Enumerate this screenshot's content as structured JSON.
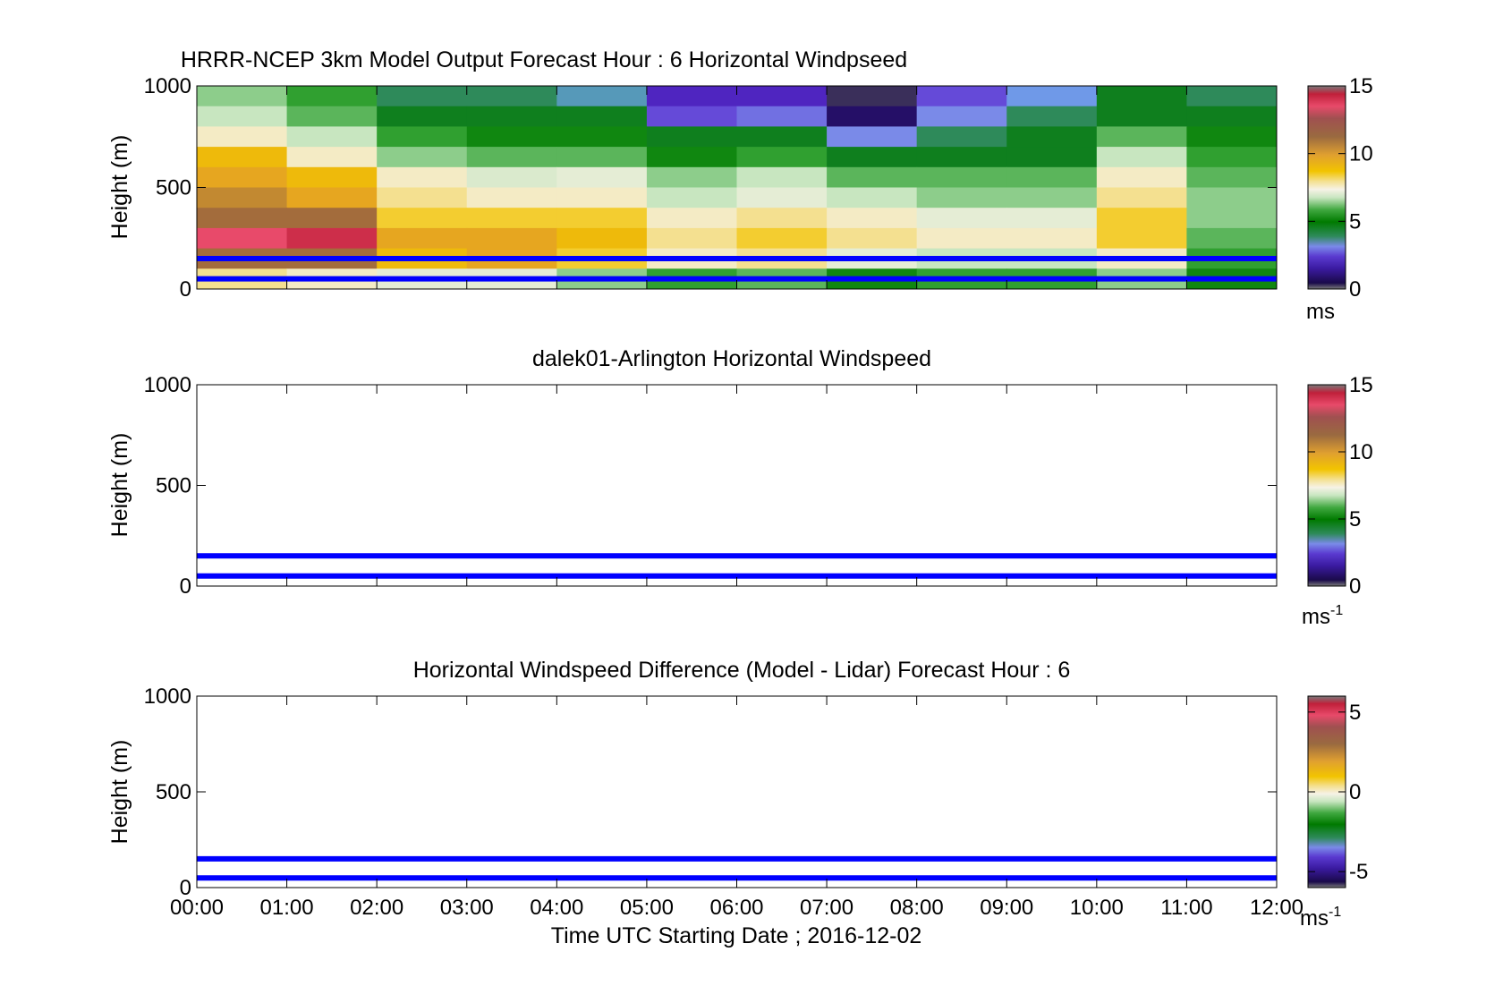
{
  "figure": {
    "xlabel": "Time UTC  Starting Date ; 2016-12-02",
    "xtick_labels": [
      "00:00",
      "01:00",
      "02:00",
      "03:00",
      "04:00",
      "05:00",
      "06:00",
      "07:00",
      "08:00",
      "09:00",
      "10:00",
      "11:00",
      "12:00"
    ]
  },
  "chart_data": [
    {
      "type": "heatmap",
      "title": "HRRR-NCEP 3km Model Output   Forecast Hour : 6 Horizontal Windpseed",
      "ylabel": "Height (m)",
      "xlim": [
        0,
        12
      ],
      "ylim": [
        0,
        1000
      ],
      "yticks": [
        0,
        500,
        1000
      ],
      "colorbar": {
        "label": "ms",
        "label_sup": "",
        "ticks": [
          0,
          5,
          10,
          15
        ],
        "range": [
          0,
          15
        ]
      },
      "x_hours": [
        0,
        1,
        2,
        3,
        4,
        5,
        6,
        7,
        8,
        9,
        10,
        11
      ],
      "y_levels_m": [
        1000,
        900,
        800,
        700,
        600,
        500,
        400,
        300,
        200,
        100
      ],
      "windspeed_ms": [
        [
          7.0,
          6.0,
          4.5,
          4.5,
          4.0,
          2.0,
          2.0,
          0.5,
          2.5,
          3.5,
          5.0,
          4.5
        ],
        [
          7.5,
          6.5,
          5.0,
          5.0,
          5.0,
          2.5,
          2.8,
          1.0,
          3.0,
          4.5,
          5.0,
          5.0
        ],
        [
          8.5,
          7.5,
          6.0,
          5.5,
          5.5,
          5.0,
          5.0,
          3.0,
          4.5,
          5.0,
          6.5,
          5.5
        ],
        [
          10.0,
          8.5,
          7.0,
          6.5,
          6.5,
          5.5,
          6.0,
          5.0,
          5.0,
          5.0,
          7.5,
          6.0
        ],
        [
          10.5,
          10.0,
          8.5,
          7.8,
          8.0,
          7.0,
          7.5,
          6.5,
          6.5,
          6.5,
          8.5,
          6.5
        ],
        [
          11.0,
          10.5,
          9.0,
          8.5,
          8.5,
          7.5,
          8.0,
          7.5,
          7.0,
          7.0,
          9.0,
          7.0
        ],
        [
          11.5,
          11.5,
          9.5,
          9.5,
          9.5,
          8.5,
          9.0,
          8.5,
          8.0,
          8.0,
          9.5,
          7.0
        ],
        [
          13.5,
          14.0,
          10.5,
          10.5,
          10.0,
          9.0,
          9.5,
          9.0,
          8.5,
          8.5,
          9.5,
          6.5
        ],
        [
          11.5,
          11.5,
          10.0,
          10.5,
          9.5,
          8.5,
          9.0,
          8.0,
          7.5,
          7.5,
          8.5,
          6.0
        ],
        [
          9.0,
          8.5,
          8.0,
          8.0,
          7.0,
          6.0,
          6.5,
          5.5,
          6.0,
          6.0,
          7.0,
          5.5
        ]
      ],
      "reference_lines_m": [
        150,
        50
      ]
    },
    {
      "type": "heatmap",
      "title": "dalek01-Arlington  Horizontal Windspeed",
      "ylabel": "Height (m)",
      "xlim": [
        0,
        12
      ],
      "ylim": [
        0,
        1000
      ],
      "yticks": [
        0,
        500,
        1000
      ],
      "colorbar": {
        "label": "ms",
        "label_sup": "-1",
        "ticks": [
          0,
          5,
          10,
          15
        ],
        "range": [
          0,
          15
        ]
      },
      "reference_lines_m": [
        150,
        50
      ]
    },
    {
      "type": "heatmap",
      "title": "Horizontal Windspeed Difference (Model - Lidar) Forecast Hour : 6",
      "ylabel": "Height (m)",
      "xlim": [
        0,
        12
      ],
      "ylim": [
        0,
        1000
      ],
      "yticks": [
        0,
        500,
        1000
      ],
      "colorbar": {
        "label": "ms",
        "label_sup": "-1",
        "ticks": [
          -5,
          0,
          5
        ],
        "range": [
          -6,
          6
        ]
      },
      "reference_lines_m": [
        150,
        50
      ]
    }
  ],
  "colors": {
    "reference_line": "#0000ff",
    "colormap": [
      "#7a7a7a",
      "#1a0a4a",
      "#3a1aa0",
      "#5a2ad0",
      "#7a8ae8",
      "#6aa0e8",
      "#2e8a5a",
      "#007a00",
      "#30a030",
      "#70c070",
      "#c8e6c0",
      "#f4f0e0",
      "#f4e090",
      "#f2c400",
      "#e6a620",
      "#b07a3a",
      "#8a5040",
      "#c04a5a",
      "#e84a6a",
      "#c0203a",
      "#7a7a7a"
    ]
  }
}
